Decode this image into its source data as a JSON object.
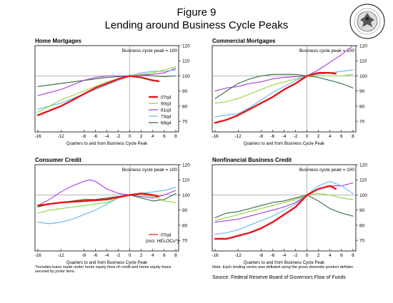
{
  "figure": {
    "title": "Figure 9",
    "subtitle": "Lending around Business Cycle Peaks",
    "footnote_line1": "*Includes loans made under home equity lines of credit and home equity loans",
    "footnote_line2": "secured by junior liens.",
    "deflator_note": "Note: Each lending series was deflated using the gross domestic product deflator.",
    "source": "Source: Federal Reserve Board of Governors Flow of Funds"
  },
  "colors": {
    "07q4": "#e8141a",
    "90q3": "#8fd33a",
    "81q3": "#a637d9",
    "73q4": "#5cb8e6",
    "69q4": "#2e6b3c",
    "grid": "#888888"
  },
  "chart_data": [
    {
      "type": "line",
      "title": "Home Mortgages",
      "peak_label": "Business cycle peak = 100",
      "xlabel": "Quarters to and from Business Cycle Peak",
      "xticks": [
        -16,
        -12,
        -8,
        -6,
        -4,
        -2,
        0,
        2,
        4,
        6,
        8
      ],
      "yticks": [
        70,
        80,
        90,
        100,
        110,
        120
      ],
      "xlim": [
        -16.5,
        8.5
      ],
      "ylim": [
        63,
        120
      ],
      "reference_line": 100,
      "legend": [
        "07q4",
        "90q3",
        "81q3",
        "73q4",
        "69q4"
      ],
      "legend_placement": "bottom-right",
      "series": [
        {
          "name": "69q4",
          "x": [
            -16,
            -14,
            -12,
            -10,
            -8,
            -6,
            -4,
            -2,
            0,
            2,
            4,
            6,
            8
          ],
          "y": [
            93,
            94,
            95,
            96,
            97,
            98,
            99,
            99.5,
            100,
            100.5,
            100,
            99.5,
            100
          ]
        },
        {
          "name": "81q3",
          "x": [
            -16,
            -14,
            -12,
            -10,
            -8,
            -6,
            -4,
            -2,
            0,
            2,
            4,
            6,
            8
          ],
          "y": [
            87,
            89,
            91,
            94,
            97,
            99,
            100,
            100,
            100,
            100.5,
            101,
            102,
            105
          ]
        },
        {
          "name": "73q4",
          "x": [
            -16,
            -14,
            -12,
            -10,
            -8,
            -6,
            -4,
            -2,
            0,
            2,
            4,
            6,
            8
          ],
          "y": [
            78,
            80,
            82,
            85,
            88,
            91,
            94,
            97,
            100,
            102,
            103,
            103,
            104
          ]
        },
        {
          "name": "90q3",
          "x": [
            -16,
            -14,
            -12,
            -10,
            -8,
            -6,
            -4,
            -2,
            0,
            2,
            4,
            6,
            8
          ],
          "y": [
            76,
            80,
            84,
            87,
            90,
            93,
            96,
            98,
            100,
            101,
            102,
            104,
            106
          ]
        },
        {
          "name": "07q4",
          "x": [
            -16,
            -14,
            -12,
            -10,
            -8,
            -6,
            -4,
            -2,
            0,
            2,
            4,
            5
          ],
          "y": [
            74,
            77,
            80,
            84,
            88,
            92,
            95,
            98,
            100,
            99,
            97,
            96.5
          ]
        }
      ]
    },
    {
      "type": "line",
      "title": "Commercial Mortgages",
      "peak_label": "Business cycle peak = 100",
      "xlabel": "Quarters to and from Business Cycle Peak",
      "xticks": [
        -16,
        -12,
        -8,
        -6,
        -4,
        -2,
        0,
        2,
        4,
        6,
        8
      ],
      "yticks": [
        70,
        80,
        90,
        100,
        110,
        120
      ],
      "xlim": [
        -16.5,
        8.5
      ],
      "ylim": [
        63,
        120
      ],
      "reference_line": 100,
      "series": [
        {
          "name": "81q3",
          "x": [
            -16,
            -14,
            -12,
            -10,
            -8,
            -6,
            -4,
            -2,
            0,
            2,
            4,
            6,
            8
          ],
          "y": [
            90,
            92,
            93,
            95,
            96,
            98,
            99,
            99.5,
            100,
            104,
            109,
            114,
            120
          ]
        },
        {
          "name": "69q4",
          "x": [
            -16,
            -14,
            -12,
            -10,
            -8,
            -6,
            -4,
            -2,
            0,
            2,
            4,
            6,
            8
          ],
          "y": [
            85,
            90,
            95,
            98,
            100,
            101,
            101,
            101,
            100,
            99,
            97,
            95,
            92
          ]
        },
        {
          "name": "73q4",
          "x": [
            -16,
            -14,
            -12,
            -10,
            -8,
            -6,
            -4,
            -2,
            0,
            2,
            4,
            6,
            8
          ],
          "y": [
            73,
            74,
            75,
            79,
            84,
            89,
            93,
            97,
            100,
            101,
            102,
            103,
            104
          ]
        },
        {
          "name": "90q3",
          "x": [
            -16,
            -14,
            -12,
            -10,
            -8,
            -6,
            -4,
            -2,
            0,
            2,
            4,
            6,
            8
          ],
          "y": [
            82,
            83,
            85,
            88,
            91,
            94,
            96,
            98,
            100,
            100,
            100,
            100,
            101
          ]
        },
        {
          "name": "07q4",
          "x": [
            -16,
            -14,
            -12,
            -10,
            -8,
            -6,
            -4,
            -2,
            0,
            2,
            4,
            5
          ],
          "y": [
            69,
            71,
            74,
            78,
            82,
            86,
            91,
            95,
            100,
            102,
            102,
            101.5
          ]
        }
      ]
    },
    {
      "type": "line",
      "title": "Consumer Credit",
      "peak_label": "Business cycle peak = 100",
      "xlabel": "Quarters to and from Business Cycle Peak",
      "xticks": [
        -16,
        -12,
        -8,
        -6,
        -4,
        -2,
        0,
        2,
        4,
        6,
        8
      ],
      "yticks": [
        70,
        80,
        90,
        100,
        110,
        120
      ],
      "xlim": [
        -16.5,
        8.5
      ],
      "ylim": [
        63,
        120
      ],
      "reference_line": 100,
      "legend": [
        "07q4"
      ],
      "legend_note": "(incl. HELOCs*)",
      "legend_placement": "bottom-right",
      "series": [
        {
          "name": "81q3",
          "x": [
            -16,
            -14,
            -12,
            -10,
            -8,
            -7,
            -6,
            -4,
            -2,
            0,
            2,
            4,
            6,
            8
          ],
          "y": [
            93,
            97,
            102,
            106,
            109,
            110,
            109,
            104,
            101,
            100,
            99,
            98,
            100,
            103
          ]
        },
        {
          "name": "69q4",
          "x": [
            -16,
            -14,
            -12,
            -10,
            -8,
            -6,
            -4,
            -2,
            0,
            2,
            4,
            6,
            8
          ],
          "y": [
            92,
            94,
            95,
            96,
            97,
            97,
            98,
            99,
            100,
            98,
            96,
            97,
            101
          ]
        },
        {
          "name": "90q3",
          "x": [
            -16,
            -14,
            -12,
            -10,
            -8,
            -6,
            -4,
            -2,
            0,
            2,
            4,
            6,
            8
          ],
          "y": [
            88,
            90,
            91,
            92,
            93,
            94,
            95,
            98,
            100,
            100,
            99,
            96,
            95
          ]
        },
        {
          "name": "73q4",
          "x": [
            -16,
            -14,
            -12,
            -10,
            -8,
            -6,
            -4,
            -2,
            0,
            2,
            4,
            6,
            8
          ],
          "y": [
            82,
            81,
            82,
            84,
            87,
            90,
            94,
            98,
            100,
            101,
            102,
            103,
            105
          ]
        },
        {
          "name": "07q4",
          "x": [
            -16,
            -14,
            -12,
            -10,
            -8,
            -6,
            -4,
            -2,
            0,
            2,
            4,
            5
          ],
          "y": [
            93,
            94,
            95,
            95.5,
            96,
            96.5,
            97,
            98.5,
            100,
            101,
            100,
            99
          ]
        }
      ]
    },
    {
      "type": "line",
      "title": "Nonfinancial Business Credit",
      "peak_label": "Business cycle peak = 100",
      "xlabel": "Quarters to and from Business Cycle Peak",
      "xticks": [
        -16,
        -12,
        -8,
        -6,
        -4,
        -2,
        0,
        2,
        4,
        6,
        8
      ],
      "yticks": [
        70,
        80,
        90,
        100,
        110,
        120
      ],
      "xlim": [
        -16.5,
        8.5
      ],
      "ylim": [
        63,
        120
      ],
      "reference_line": 100,
      "series": [
        {
          "name": "69q4",
          "x": [
            -16,
            -14,
            -12,
            -10,
            -8,
            -6,
            -4,
            -2,
            0,
            2,
            4,
            6,
            8
          ],
          "y": [
            85,
            88,
            89,
            91,
            93,
            95,
            96,
            98,
            100,
            96,
            91,
            88,
            86
          ]
        },
        {
          "name": "90q3",
          "x": [
            -16,
            -14,
            -12,
            -10,
            -8,
            -6,
            -4,
            -2,
            0,
            2,
            4,
            6,
            8
          ],
          "y": [
            83,
            85,
            87,
            89,
            91,
            93,
            95,
            97,
            100,
            101,
            100,
            98,
            97
          ]
        },
        {
          "name": "81q3",
          "x": [
            -16,
            -14,
            -12,
            -10,
            -8,
            -6,
            -4,
            -2,
            0,
            2,
            4,
            6,
            8
          ],
          "y": [
            82,
            83,
            84,
            86,
            88,
            90,
            92,
            95,
            100,
            104,
            106,
            106,
            108
          ]
        },
        {
          "name": "73q4",
          "x": [
            -16,
            -14,
            -12,
            -10,
            -8,
            -6,
            -4,
            -2,
            0,
            2,
            4,
            6,
            8
          ],
          "y": [
            74,
            75,
            77,
            80,
            83,
            86,
            90,
            94,
            100,
            106,
            109,
            106,
            101
          ]
        },
        {
          "name": "07q4",
          "x": [
            -16,
            -14,
            -12,
            -10,
            -8,
            -6,
            -4,
            -2,
            0,
            2,
            4,
            5
          ],
          "y": [
            71,
            71,
            73,
            75,
            78,
            82,
            87,
            92,
            100,
            104,
            106,
            104
          ]
        }
      ]
    }
  ]
}
